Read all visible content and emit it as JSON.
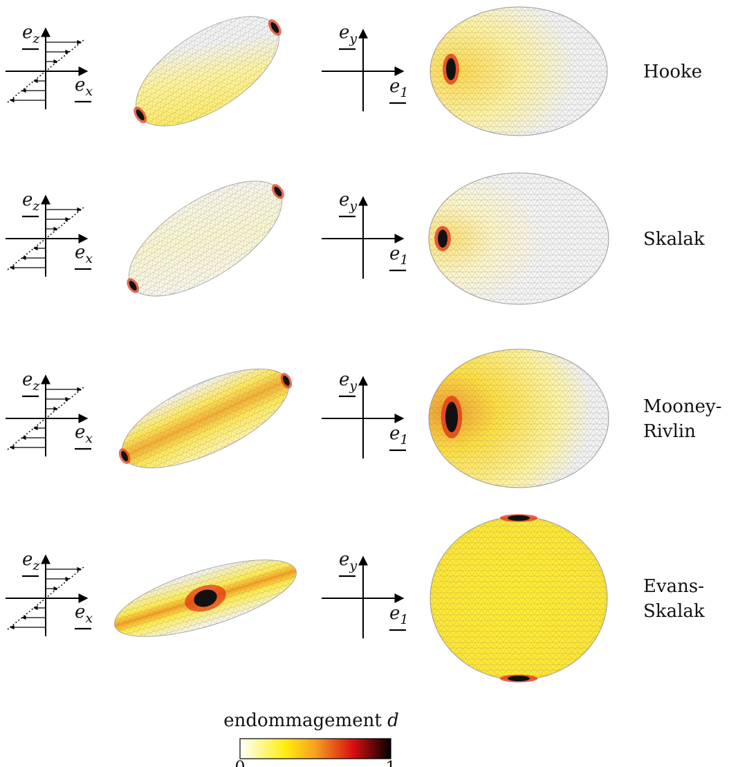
{
  "rows": [
    {
      "label_lines": [
        "Hooke"
      ],
      "shear_axes": {
        "vertical": {
          "base": "e",
          "sub": "z"
        },
        "horizontal": {
          "base": "e",
          "sub": "x"
        }
      },
      "frame_axes": {
        "vertical": {
          "base": "e",
          "sub": "y"
        },
        "horizontal": {
          "base": "e",
          "sub": "1"
        }
      }
    },
    {
      "label_lines": [
        "Skalak"
      ],
      "shear_axes": {
        "vertical": {
          "base": "e",
          "sub": "z"
        },
        "horizontal": {
          "base": "e",
          "sub": "x"
        }
      },
      "frame_axes": {
        "vertical": {
          "base": "e",
          "sub": "y"
        },
        "horizontal": {
          "base": "e",
          "sub": "1"
        }
      }
    },
    {
      "label_lines": [
        "Mooney-",
        "Rivlin"
      ],
      "shear_axes": {
        "vertical": {
          "base": "e",
          "sub": "z"
        },
        "horizontal": {
          "base": "e",
          "sub": "x"
        }
      },
      "frame_axes": {
        "vertical": {
          "base": "e",
          "sub": "y"
        },
        "horizontal": {
          "base": "e",
          "sub": "1"
        }
      }
    },
    {
      "label_lines": [
        "Evans-",
        "Skalak"
      ],
      "shear_axes": {
        "vertical": {
          "base": "e",
          "sub": "z"
        },
        "horizontal": {
          "base": "e",
          "sub": "x"
        }
      },
      "frame_axes": {
        "vertical": {
          "base": "e",
          "sub": "y"
        },
        "horizontal": {
          "base": "e",
          "sub": "1"
        }
      }
    }
  ],
  "colorbar": {
    "title": "endommagement",
    "title_symbol": "d",
    "min_label": "0",
    "max_label": "1"
  }
}
